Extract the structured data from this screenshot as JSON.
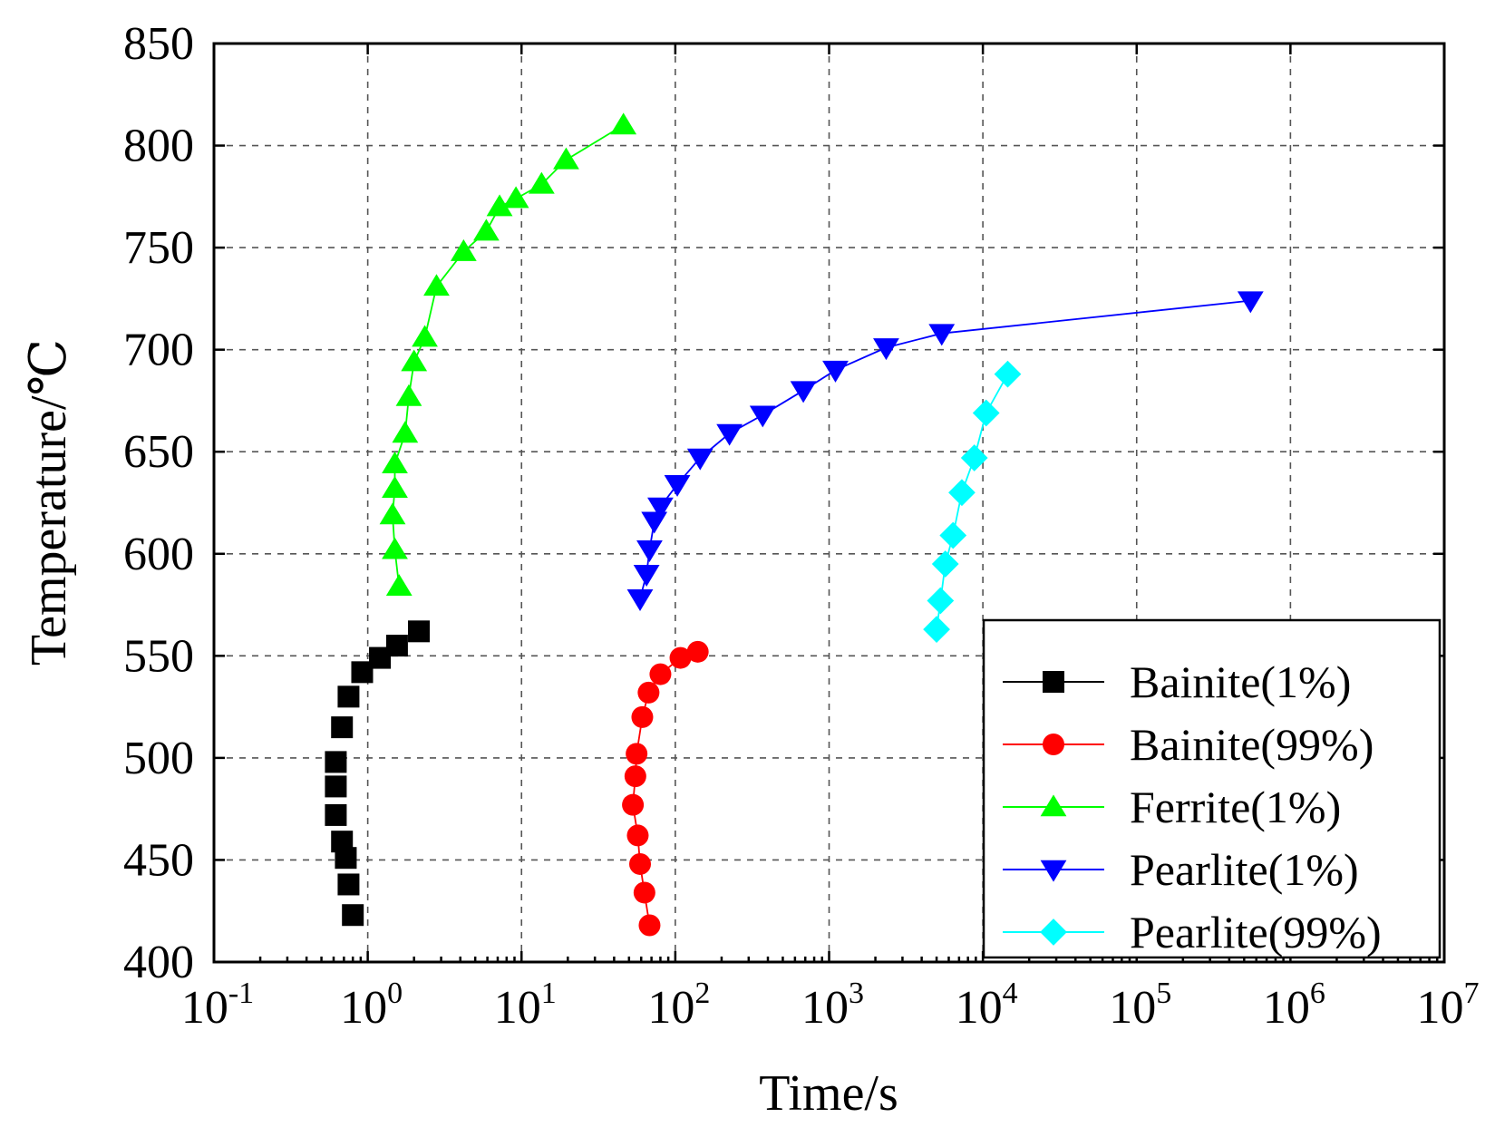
{
  "chart_data": {
    "type": "scatter",
    "title": "",
    "xlabel": "Time/s",
    "ylabel": "Temperature/℃",
    "xscale": "log",
    "xlim_exponents": [
      -1,
      7
    ],
    "ylim": [
      400,
      850
    ],
    "x_tick_base": "10",
    "x_tick_exponents": [
      "-1",
      "0",
      "1",
      "2",
      "3",
      "4",
      "5",
      "6",
      "7"
    ],
    "y_ticks": [
      "400",
      "450",
      "500",
      "550",
      "600",
      "650",
      "700",
      "750",
      "800",
      "850"
    ],
    "grid": true,
    "legend_position": "bottom-right",
    "series": [
      {
        "name": "Bainite(1%)",
        "color": "#000000",
        "marker": "square",
        "line": false,
        "points": [
          [
            0.8,
            423
          ],
          [
            0.75,
            438
          ],
          [
            0.72,
            451
          ],
          [
            0.68,
            459
          ],
          [
            0.62,
            472
          ],
          [
            0.62,
            486
          ],
          [
            0.62,
            498
          ],
          [
            0.68,
            515
          ],
          [
            0.75,
            530
          ],
          [
            0.92,
            542
          ],
          [
            1.2,
            549
          ],
          [
            1.55,
            555
          ],
          [
            2.15,
            562
          ]
        ]
      },
      {
        "name": "Bainite(99%)",
        "color": "#ff0000",
        "marker": "circle",
        "line": true,
        "points": [
          [
            68,
            418
          ],
          [
            63,
            434
          ],
          [
            59,
            448
          ],
          [
            57,
            462
          ],
          [
            53,
            477
          ],
          [
            55,
            491
          ],
          [
            56,
            502
          ],
          [
            61,
            520
          ],
          [
            67,
            532
          ],
          [
            80,
            541
          ],
          [
            108,
            549
          ],
          [
            140,
            552
          ]
        ]
      },
      {
        "name": "Ferrite(1%)",
        "color": "#00ff00",
        "marker": "triangle-up",
        "line": true,
        "points": [
          [
            1.6,
            584
          ],
          [
            1.5,
            602
          ],
          [
            1.45,
            619
          ],
          [
            1.5,
            632
          ],
          [
            1.5,
            644
          ],
          [
            1.75,
            659
          ],
          [
            1.85,
            677
          ],
          [
            2.0,
            694
          ],
          [
            2.35,
            706
          ],
          [
            2.8,
            731
          ],
          [
            4.2,
            748
          ],
          [
            5.9,
            758
          ],
          [
            7.2,
            770
          ],
          [
            9.2,
            774
          ],
          [
            13.5,
            781
          ],
          [
            19.5,
            793
          ],
          [
            46,
            810
          ]
        ]
      },
      {
        "name": "Pearlite(1%)",
        "color": "#0000ff",
        "marker": "triangle-down",
        "line": true,
        "points": [
          [
            59,
            578
          ],
          [
            65,
            590
          ],
          [
            68,
            602
          ],
          [
            73,
            616
          ],
          [
            80,
            623
          ],
          [
            103,
            634
          ],
          [
            145,
            647
          ],
          [
            225,
            659
          ],
          [
            370,
            668
          ],
          [
            680,
            680
          ],
          [
            1100,
            690
          ],
          [
            2350,
            701
          ],
          [
            5400,
            708
          ],
          [
            550000,
            724
          ]
        ]
      },
      {
        "name": "Pearlite(99%)",
        "color": "#00ffff",
        "marker": "diamond",
        "line": true,
        "points": [
          [
            5000,
            563
          ],
          [
            5300,
            577
          ],
          [
            5700,
            595
          ],
          [
            6400,
            609
          ],
          [
            7300,
            630
          ],
          [
            8800,
            647
          ],
          [
            10500,
            669
          ],
          [
            14500,
            688
          ]
        ]
      }
    ]
  }
}
